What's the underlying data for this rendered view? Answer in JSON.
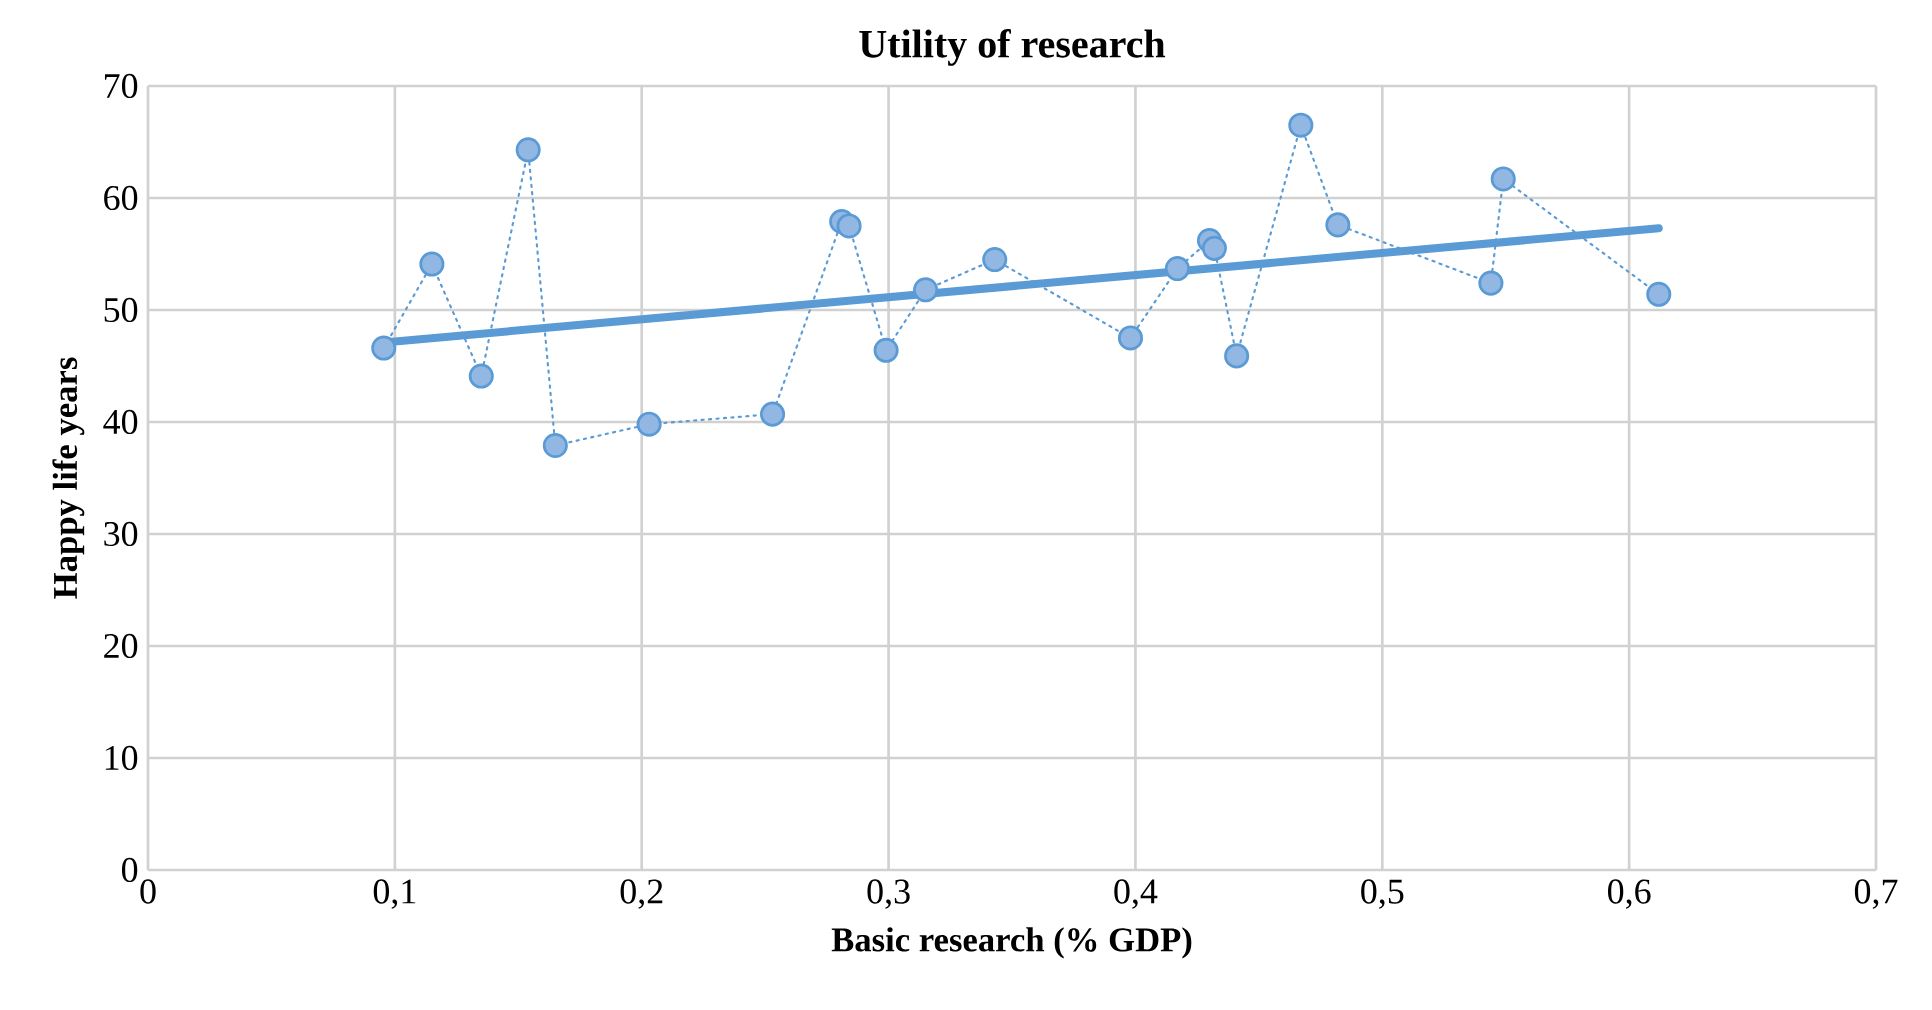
{
  "chart_data": {
    "type": "line",
    "title": "Utility of research",
    "xlabel": "Basic research (% GDP)",
    "ylabel": "Happy life years",
    "xlim": [
      0,
      0.7
    ],
    "ylim": [
      0,
      70
    ],
    "xticks": [
      0,
      {
        "value": 0.1,
        "label": "0,1"
      },
      {
        "value": 0.2,
        "label": "0,2"
      },
      {
        "value": 0.3,
        "label": "0,3"
      },
      {
        "value": 0.4,
        "label": "0,4"
      },
      {
        "value": 0.5,
        "label": "0,5"
      },
      {
        "value": 0.6,
        "label": "0,6"
      },
      {
        "value": 0.7,
        "label": "0,7"
      }
    ],
    "yticks": [
      0,
      10,
      20,
      30,
      40,
      50,
      60,
      70
    ],
    "grid": true,
    "series": [
      {
        "color": "#5b9bd5",
        "marker": "circle",
        "line_style": "dotted",
        "x": [
          0.0955,
          0.115,
          0.135,
          0.154,
          0.165,
          0.203,
          0.253,
          0.281,
          0.284,
          0.299,
          0.315,
          0.343,
          0.398,
          0.417,
          0.43,
          0.432,
          0.441,
          0.467,
          0.482,
          0.544,
          0.549,
          0.612
        ],
        "values": [
          46.6,
          54.1,
          44.1,
          64.3,
          37.9,
          39.8,
          40.7,
          57.9,
          57.5,
          46.4,
          51.8,
          54.5,
          47.5,
          53.7,
          56.2,
          55.5,
          45.9,
          66.5,
          57.6,
          52.4,
          61.7,
          51.4
        ]
      },
      {
        "type": "line",
        "color": "#5b9bd5",
        "marker": "none",
        "line_style": "solid",
        "x": [
          0.0955,
          0.612
        ],
        "values": [
          47.1,
          57.3
        ]
      }
    ]
  }
}
